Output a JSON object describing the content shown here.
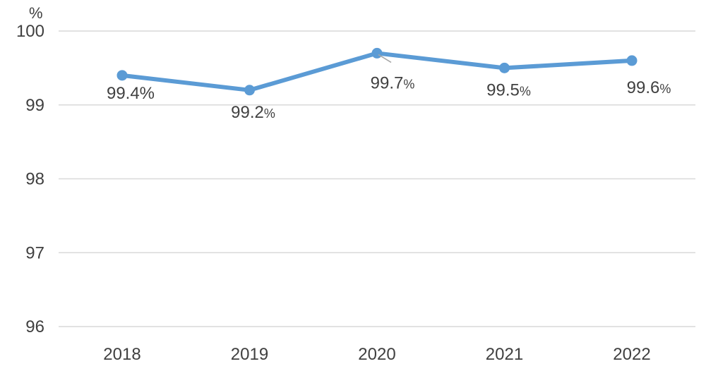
{
  "chart_data": {
    "type": "line",
    "categories": [
      "2018",
      "2019",
      "2020",
      "2021",
      "2022"
    ],
    "series": [
      {
        "values": [
          99.4,
          99.2,
          99.7,
          99.5,
          99.6
        ],
        "color": "#5b9bd5"
      }
    ],
    "data_labels": [
      "99.4%",
      "99.2%",
      "99.7%",
      "99.5%",
      "99.6%"
    ],
    "y_unit": "%",
    "ylim": [
      96,
      100
    ],
    "y_ticks": [
      "96",
      "97",
      "98",
      "99",
      "100"
    ],
    "grid": true,
    "legend": "none",
    "gridline_color": "#d9d9d9",
    "leader_line_color": "#a6a6a6"
  }
}
